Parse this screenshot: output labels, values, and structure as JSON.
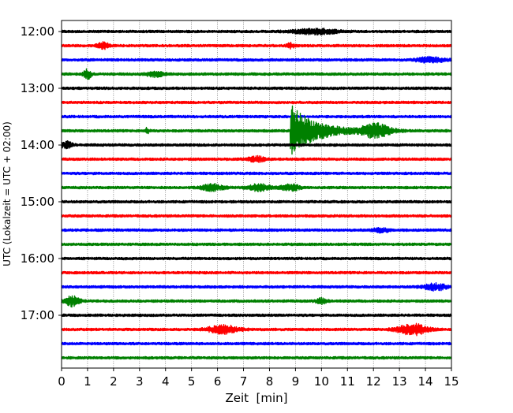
{
  "chart_data": {
    "type": "seismogram",
    "xlabel": "Zeit  [min]",
    "ylabel": "UTC (Lokalzeit = UTC + 02:00)",
    "xlim": [
      0,
      15
    ],
    "x_ticks": [
      0,
      1,
      2,
      3,
      4,
      5,
      6,
      7,
      8,
      9,
      10,
      11,
      12,
      13,
      14,
      15
    ],
    "x_tick_labels": [
      "0",
      "1",
      "2",
      "3",
      "4",
      "5",
      "6",
      "7",
      "8",
      "9",
      "10",
      "11",
      "12",
      "13",
      "14",
      "15"
    ],
    "y_tick_labels": [
      "12:00",
      "13:00",
      "14:00",
      "15:00",
      "16:00",
      "17:00"
    ],
    "grid": "vertical dotted",
    "color_cycle": [
      "#000000",
      "#ff0000",
      "#0000ff",
      "#008000"
    ],
    "traces": [
      {
        "start": "12:00",
        "color": "#000000",
        "bursts": [
          {
            "t": 9.8,
            "amp": 3,
            "dur": 1.2
          }
        ]
      },
      {
        "start": "12:15",
        "color": "#ff0000",
        "bursts": [
          {
            "t": 1.6,
            "amp": 4,
            "dur": 0.3
          },
          {
            "t": 8.8,
            "amp": 3,
            "dur": 0.2
          }
        ]
      },
      {
        "start": "12:30",
        "color": "#0000ff",
        "bursts": [
          {
            "t": 14.2,
            "amp": 3,
            "dur": 0.8
          }
        ]
      },
      {
        "start": "12:45",
        "color": "#008000",
        "bursts": [
          {
            "t": 1.0,
            "amp": 6,
            "dur": 0.2
          },
          {
            "t": 3.6,
            "amp": 3,
            "dur": 0.5
          }
        ]
      },
      {
        "start": "13:00",
        "color": "#000000",
        "bursts": []
      },
      {
        "start": "13:15",
        "color": "#ff0000",
        "bursts": []
      },
      {
        "start": "13:30",
        "color": "#0000ff",
        "bursts": []
      },
      {
        "start": "13:45",
        "color": "#008000",
        "bursts": [
          {
            "t": 3.3,
            "amp": 4,
            "dur": 0.1
          },
          {
            "t": 8.8,
            "amp": 34,
            "dur": 1.6
          },
          {
            "t": 12.1,
            "amp": 8,
            "dur": 0.8
          }
        ]
      },
      {
        "start": "14:00",
        "color": "#000000",
        "bursts": [
          {
            "t": 0.2,
            "amp": 4,
            "dur": 0.3
          }
        ]
      },
      {
        "start": "14:15",
        "color": "#ff0000",
        "bursts": [
          {
            "t": 7.5,
            "amp": 3,
            "dur": 0.5
          }
        ]
      },
      {
        "start": "14:30",
        "color": "#0000ff",
        "bursts": []
      },
      {
        "start": "14:45",
        "color": "#008000",
        "bursts": [
          {
            "t": 5.8,
            "amp": 4,
            "dur": 0.6
          },
          {
            "t": 7.6,
            "amp": 4,
            "dur": 0.6
          },
          {
            "t": 8.8,
            "amp": 4,
            "dur": 0.5
          }
        ]
      },
      {
        "start": "15:00",
        "color": "#000000",
        "bursts": []
      },
      {
        "start": "15:15",
        "color": "#ff0000",
        "bursts": []
      },
      {
        "start": "15:30",
        "color": "#0000ff",
        "bursts": [
          {
            "t": 12.3,
            "amp": 3,
            "dur": 0.4
          }
        ]
      },
      {
        "start": "15:45",
        "color": "#008000",
        "bursts": []
      },
      {
        "start": "16:00",
        "color": "#000000",
        "bursts": []
      },
      {
        "start": "16:15",
        "color": "#ff0000",
        "bursts": []
      },
      {
        "start": "16:30",
        "color": "#0000ff",
        "bursts": [
          {
            "t": 14.4,
            "amp": 4,
            "dur": 0.6
          }
        ]
      },
      {
        "start": "16:45",
        "color": "#008000",
        "bursts": [
          {
            "t": 0.4,
            "amp": 6,
            "dur": 0.4
          },
          {
            "t": 10.0,
            "amp": 3,
            "dur": 0.3
          }
        ]
      },
      {
        "start": "17:00",
        "color": "#000000",
        "bursts": []
      },
      {
        "start": "17:15",
        "color": "#ff0000",
        "bursts": [
          {
            "t": 6.2,
            "amp": 5,
            "dur": 0.8
          },
          {
            "t": 13.5,
            "amp": 7,
            "dur": 0.8
          }
        ]
      },
      {
        "start": "17:30",
        "color": "#0000ff",
        "bursts": []
      },
      {
        "start": "17:45",
        "color": "#008000",
        "bursts": []
      }
    ]
  }
}
